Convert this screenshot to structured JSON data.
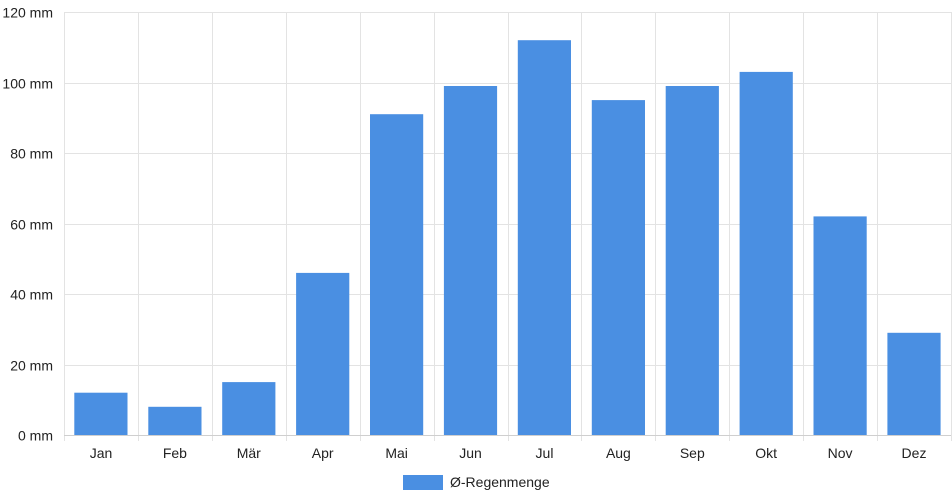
{
  "chart_data": {
    "type": "bar",
    "categories": [
      "Jan",
      "Feb",
      "Mär",
      "Apr",
      "Mai",
      "Jun",
      "Jul",
      "Aug",
      "Sep",
      "Okt",
      "Nov",
      "Dez"
    ],
    "series": [
      {
        "name": "Ø-Regenmenge",
        "values": [
          12,
          8,
          15,
          46,
          91,
          99,
          112,
          95,
          99,
          103,
          62,
          29
        ],
        "color": "#4a8fe2"
      }
    ],
    "y_ticks": [
      "0 mm",
      "20 mm",
      "40 mm",
      "60 mm",
      "80 mm",
      "100 mm",
      "120 mm"
    ],
    "ylim": [
      0,
      120
    ],
    "grid": true,
    "legend_position": "bottom"
  }
}
